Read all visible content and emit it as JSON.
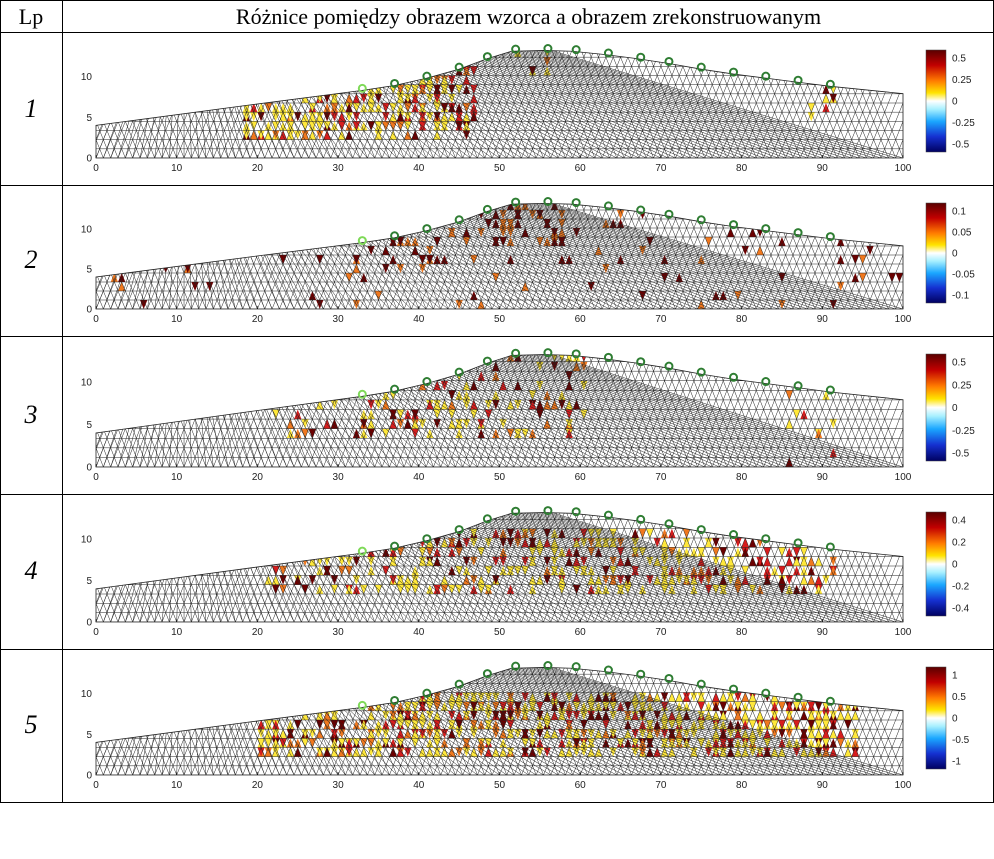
{
  "table": {
    "header_lp": "Lp",
    "header_title": "Różnice pomiędzy obrazem wzorca a obrazem zrekonstruowanym"
  },
  "rows": [
    {
      "label": "1",
      "colorbar_ticks": [
        "0.5",
        "0.25",
        "0",
        "-0.25",
        "-0.5"
      ],
      "hot": "upper-left slope"
    },
    {
      "label": "2",
      "colorbar_ticks": [
        "0.1",
        "0.05",
        "0",
        "-0.05",
        "-0.1"
      ],
      "hot": "scattered"
    },
    {
      "label": "3",
      "colorbar_ticks": [
        "0.5",
        "0.25",
        "0",
        "-0.25",
        "-0.5"
      ],
      "hot": "center"
    },
    {
      "label": "4",
      "colorbar_ticks": [
        "0.4",
        "0.2",
        "0",
        "-0.2",
        "-0.4"
      ],
      "hot": "middle band"
    },
    {
      "label": "5",
      "colorbar_ticks": [
        "1",
        "0.5",
        "0",
        "-0.5",
        "-1"
      ],
      "hot": "full band"
    }
  ],
  "axis": {
    "x_ticks": [
      "0",
      "10",
      "20",
      "30",
      "40",
      "50",
      "60",
      "70",
      "80",
      "90",
      "100"
    ],
    "y_ticks": [
      "0",
      "5",
      "10"
    ]
  },
  "colors": {
    "mesh": "#222222",
    "electrode": "#2e7d32",
    "electrode_highlight": "#7ed957",
    "yellow": "#ffe83a",
    "orange": "#f0781e",
    "red": "#d71d1d",
    "darkred": "#6b0000"
  }
}
